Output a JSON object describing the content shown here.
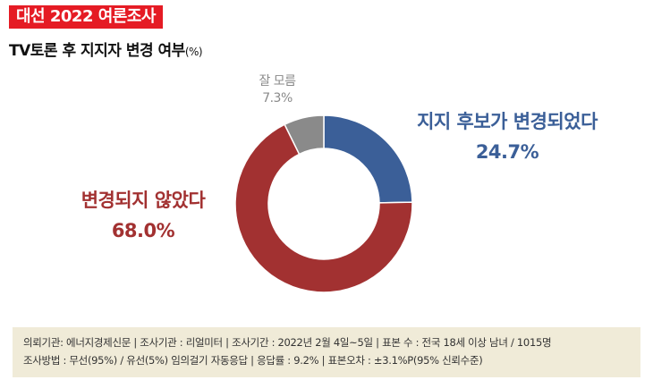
{
  "header": {
    "badge": "대선 2022 여론조사",
    "subtitle": "TV토론 후 지지자 변경 여부",
    "subtitle_unit": "(%)"
  },
  "chart_data": {
    "type": "pie",
    "donut": true,
    "slices": [
      {
        "label": "지지 후보가 변경되었다",
        "value": 24.7,
        "value_label": "24.7%",
        "color": "#3b5f98"
      },
      {
        "label": "변경되지 않았다",
        "value": 68.0,
        "value_label": "68.0%",
        "color": "#a23131"
      },
      {
        "label": "잘 모름",
        "value": 7.3,
        "value_label": "7.3%",
        "color": "#8a8a8a"
      }
    ]
  },
  "footer": {
    "line1": "의뢰기관: 에너지경제신문 | 조사기관 : 리얼미터 | 조사기간 : 2022년 2월 4일~5일 | 표본 수 : 전국 18세 이상 남녀 / 1015명",
    "line2": "조사방법 : 무선(95%) / 유선(5%) 임의걸기 자동응답 | 응답률 : 9.2% | 표본오차 : ±3.1%P(95% 신뢰수준)"
  }
}
